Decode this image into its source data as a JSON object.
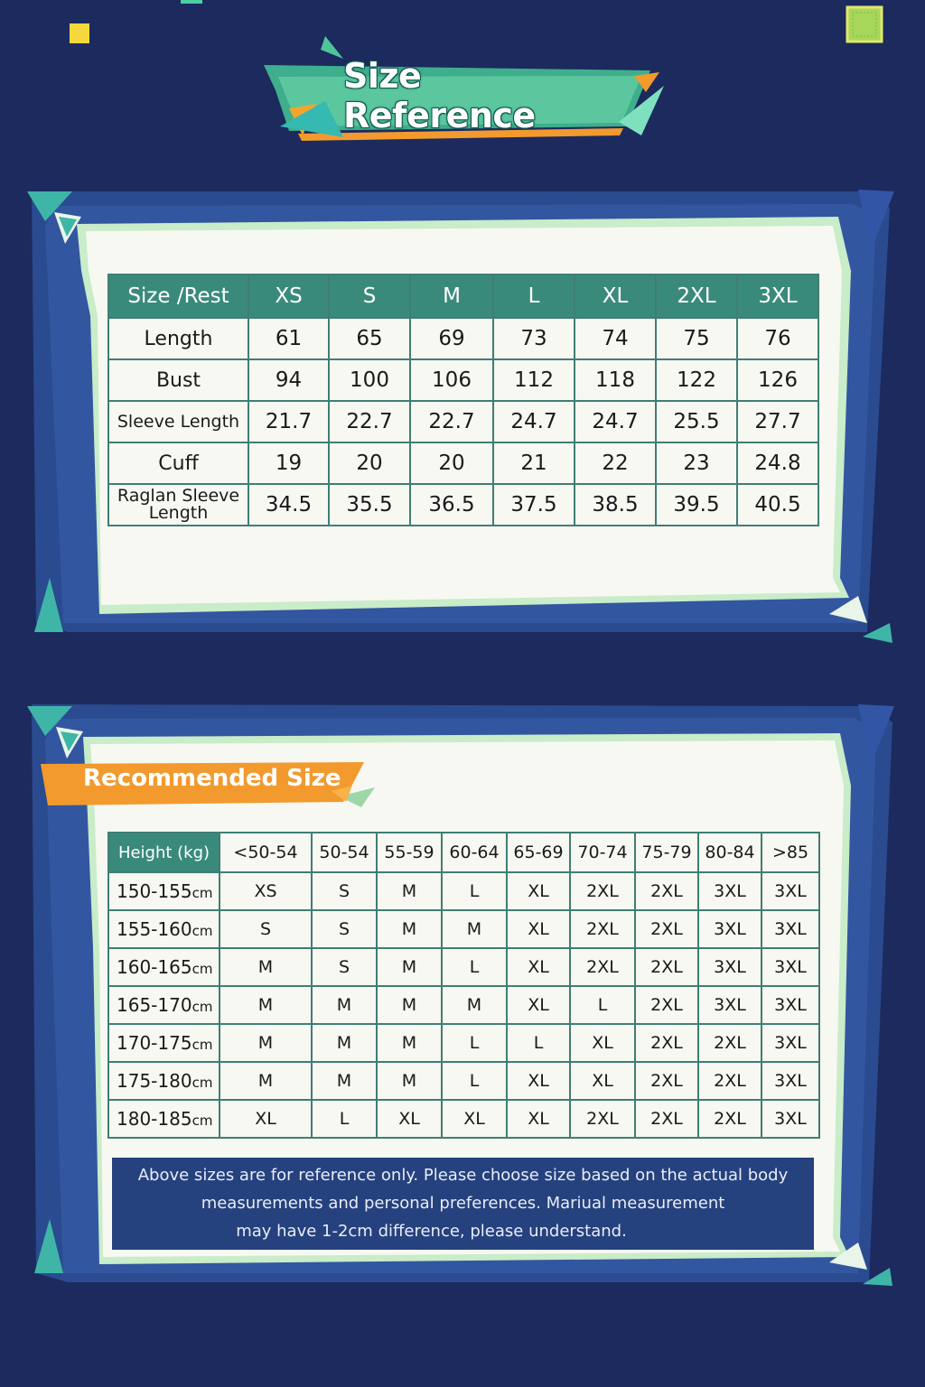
{
  "title": "Size Reference",
  "size_table": {
    "header": [
      "Size /Rest",
      "XS",
      "S",
      "M",
      "L",
      "XL",
      "2XL",
      "3XL"
    ],
    "rows": [
      {
        "label": "Length",
        "values": [
          "61",
          "65",
          "69",
          "73",
          "74",
          "75",
          "76"
        ]
      },
      {
        "label": "Bust",
        "values": [
          "94",
          "100",
          "106",
          "112",
          "118",
          "122",
          "126"
        ]
      },
      {
        "label": "Sleeve Length",
        "values": [
          "21.7",
          "22.7",
          "22.7",
          "24.7",
          "24.7",
          "25.5",
          "27.7"
        ]
      },
      {
        "label": "Cuff",
        "values": [
          "19",
          "20",
          "20",
          "21",
          "22",
          "23",
          "24.8"
        ]
      },
      {
        "label_line1": "Raglan Sleeve",
        "label_line2": "Length",
        "values": [
          "34.5",
          "35.5",
          "36.5",
          "37.5",
          "38.5",
          "39.5",
          "40.5"
        ]
      }
    ]
  },
  "recommend": {
    "title": "Recommended Size",
    "corner": "Height (kg)",
    "weights": [
      "<50-54",
      "50-54",
      "55-59",
      "60-64",
      "65-69",
      "70-74",
      "75-79",
      "80-84",
      ">85"
    ],
    "unit": "cm",
    "rows": [
      {
        "height": "150-155",
        "sizes": [
          "XS",
          "S",
          "M",
          "L",
          "XL",
          "2XL",
          "2XL",
          "3XL",
          "3XL"
        ]
      },
      {
        "height": "155-160",
        "sizes": [
          "S",
          "S",
          "M",
          "M",
          "XL",
          "2XL",
          "2XL",
          "3XL",
          "3XL"
        ]
      },
      {
        "height": "160-165",
        "sizes": [
          "M",
          "S",
          "M",
          "L",
          "XL",
          "2XL",
          "2XL",
          "3XL",
          "3XL"
        ]
      },
      {
        "height": "165-170",
        "sizes": [
          "M",
          "M",
          "M",
          "M",
          "XL",
          "L",
          "2XL",
          "3XL",
          "3XL"
        ]
      },
      {
        "height": "170-175",
        "sizes": [
          "M",
          "M",
          "M",
          "L",
          "L",
          "XL",
          "2XL",
          "2XL",
          "3XL"
        ]
      },
      {
        "height": "175-180",
        "sizes": [
          "M",
          "M",
          "M",
          "L",
          "XL",
          "XL",
          "2XL",
          "2XL",
          "3XL"
        ]
      },
      {
        "height": "180-185",
        "sizes": [
          "XL",
          "L",
          "XL",
          "XL",
          "XL",
          "2XL",
          "2XL",
          "2XL",
          "3XL"
        ]
      }
    ]
  },
  "note": {
    "line1": "Above sizes are for reference only. Please choose size based on the actual body",
    "line2": "measurements and personal preferences. Mariual measurement",
    "line3": "may have 1-2cm difference, please understand."
  },
  "colors": {
    "background": "#1c2a5e",
    "panel_border": "#2f4f94",
    "teal": "#3a8a7c",
    "orange": "#f29a2e",
    "mint": "#5fd0a6"
  }
}
